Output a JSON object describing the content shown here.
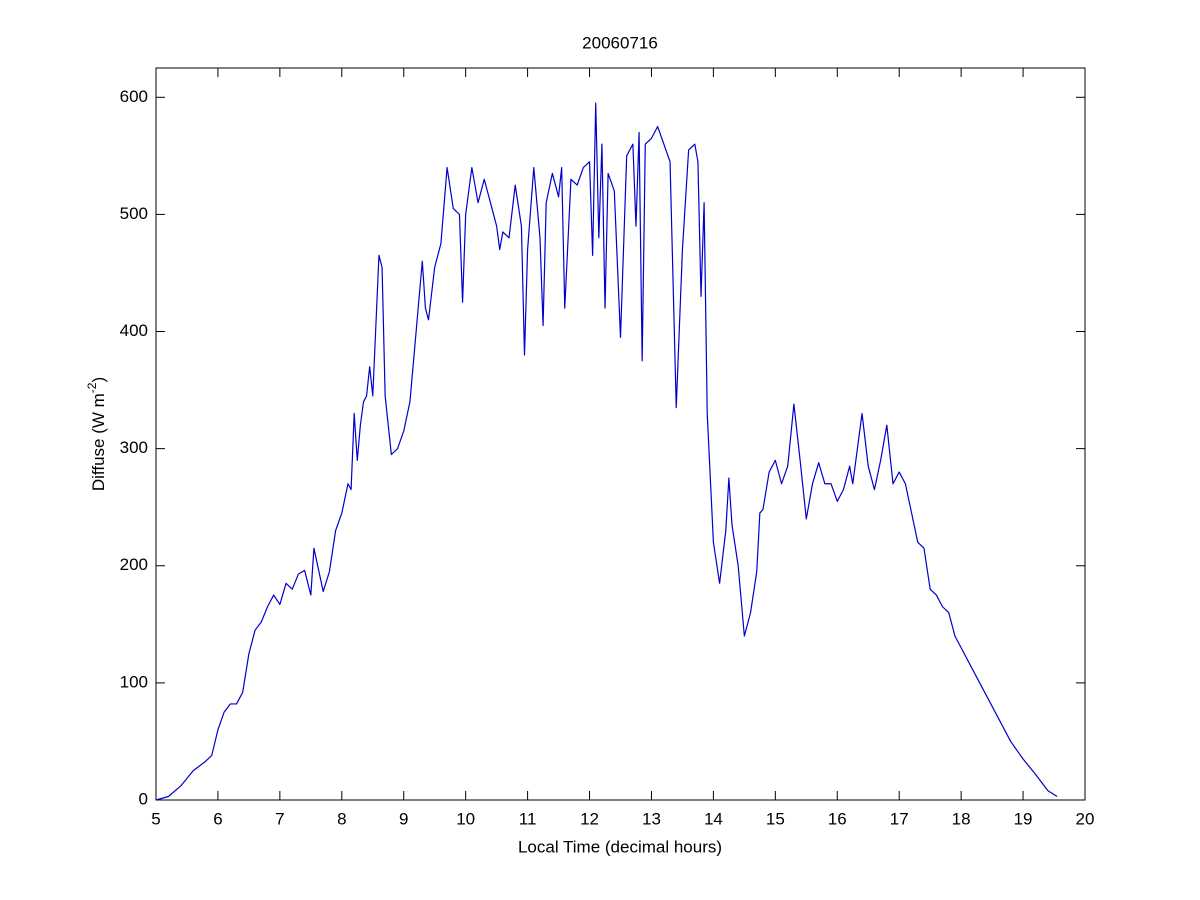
{
  "chart_data": {
    "type": "line",
    "title": "20060716",
    "xlabel": "Local Time (decimal hours)",
    "ylabel": {
      "base": "Diffuse (W m",
      "superscript": "-2",
      "suffix": ")"
    },
    "xlim": [
      5,
      20
    ],
    "ylim": [
      0,
      625
    ],
    "xticks": [
      5,
      6,
      7,
      8,
      9,
      10,
      11,
      12,
      13,
      14,
      15,
      16,
      17,
      18,
      19,
      20
    ],
    "yticks": [
      0,
      100,
      200,
      300,
      400,
      500,
      600
    ],
    "grid": false,
    "series": [
      {
        "color": "#0000cc",
        "x": [
          5.0,
          5.2,
          5.4,
          5.6,
          5.8,
          5.9,
          6.0,
          6.1,
          6.2,
          6.3,
          6.4,
          6.5,
          6.6,
          6.7,
          6.8,
          6.9,
          7.0,
          7.1,
          7.2,
          7.3,
          7.4,
          7.5,
          7.55,
          7.7,
          7.8,
          7.9,
          8.0,
          8.1,
          8.15,
          8.2,
          8.25,
          8.3,
          8.35,
          8.4,
          8.45,
          8.5,
          8.6,
          8.65,
          8.7,
          8.8,
          8.9,
          9.0,
          9.1,
          9.2,
          9.3,
          9.35,
          9.4,
          9.5,
          9.6,
          9.7,
          9.8,
          9.9,
          9.95,
          10.0,
          10.1,
          10.2,
          10.3,
          10.4,
          10.5,
          10.55,
          10.6,
          10.7,
          10.8,
          10.9,
          10.95,
          11.0,
          11.1,
          11.2,
          11.25,
          11.3,
          11.4,
          11.5,
          11.55,
          11.6,
          11.7,
          11.8,
          11.9,
          12.0,
          12.05,
          12.1,
          12.15,
          12.2,
          12.25,
          12.3,
          12.4,
          12.5,
          12.6,
          12.7,
          12.75,
          12.8,
          12.85,
          12.9,
          13.0,
          13.1,
          13.2,
          13.3,
          13.4,
          13.5,
          13.6,
          13.7,
          13.75,
          13.8,
          13.85,
          13.9,
          14.0,
          14.1,
          14.2,
          14.25,
          14.3,
          14.4,
          14.5,
          14.6,
          14.7,
          14.75,
          14.8,
          14.9,
          15.0,
          15.1,
          15.2,
          15.3,
          15.4,
          15.5,
          15.6,
          15.7,
          15.8,
          15.9,
          16.0,
          16.1,
          16.2,
          16.25,
          16.4,
          16.5,
          16.6,
          16.7,
          16.8,
          16.9,
          17.0,
          17.1,
          17.2,
          17.3,
          17.4,
          17.5,
          17.6,
          17.7,
          17.8,
          17.9,
          18.0,
          18.2,
          18.5,
          18.8,
          19.0,
          19.2,
          19.4,
          19.55
        ],
        "values": [
          0,
          3,
          12,
          25,
          33,
          38,
          60,
          75,
          82,
          82,
          92,
          125,
          145,
          152,
          165,
          175,
          167,
          185,
          180,
          193,
          196,
          175,
          215,
          178,
          195,
          230,
          245,
          270,
          265,
          330,
          290,
          320,
          340,
          345,
          370,
          345,
          465,
          455,
          345,
          295,
          300,
          315,
          340,
          400,
          460,
          420,
          410,
          455,
          475,
          540,
          505,
          500,
          425,
          500,
          540,
          510,
          530,
          510,
          490,
          470,
          485,
          480,
          525,
          490,
          380,
          470,
          540,
          480,
          405,
          510,
          535,
          515,
          540,
          420,
          530,
          525,
          540,
          545,
          465,
          595,
          480,
          560,
          420,
          535,
          520,
          395,
          550,
          560,
          490,
          570,
          375,
          560,
          565,
          575,
          560,
          545,
          335,
          470,
          555,
          560,
          545,
          430,
          510,
          330,
          220,
          185,
          230,
          275,
          235,
          200,
          140,
          160,
          195,
          245,
          248,
          280,
          290,
          270,
          285,
          338,
          290,
          240,
          270,
          288,
          270,
          270,
          255,
          265,
          285,
          270,
          330,
          285,
          265,
          290,
          320,
          270,
          280,
          270,
          245,
          220,
          215,
          180,
          175,
          165,
          160,
          140,
          130,
          110,
          80,
          50,
          35,
          22,
          8,
          3
        ]
      }
    ]
  }
}
